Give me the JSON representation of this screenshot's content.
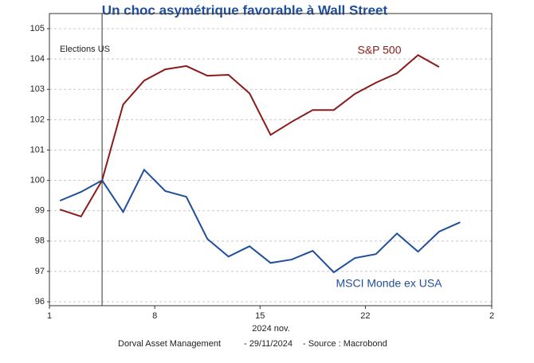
{
  "chart_data": {
    "type": "line",
    "title": "Un choc asymétrique favorable à Wall Street",
    "x_label": "2024 nov.",
    "footer": [
      "Dorval Asset Management",
      "- 29/11/2024",
      "-   Source : Macrobond"
    ],
    "annotation": {
      "x": 2,
      "label": "Elections US"
    },
    "x": [
      0,
      1,
      2,
      3,
      4,
      5,
      6,
      7,
      8,
      9,
      10,
      11,
      12,
      13,
      14,
      15,
      16,
      17,
      18,
      19
    ],
    "series": [
      {
        "name": "S&P 500",
        "color": "#8b1a1a",
        "values": [
          99.04,
          98.81,
          100,
          102.5,
          103.29,
          103.66,
          103.77,
          103.45,
          103.48,
          102.87,
          101.5,
          101.93,
          102.32,
          102.32,
          102.85,
          103.22,
          103.53,
          104.13,
          103.74,
          null
        ]
      },
      {
        "name": "MSCI Monde ex USA",
        "color": "#1f4e9c",
        "values": [
          99.33,
          99.62,
          100,
          98.96,
          100.35,
          99.65,
          99.46,
          98.07,
          97.49,
          97.83,
          97.28,
          97.39,
          97.68,
          96.97,
          97.44,
          97.57,
          98.25,
          97.65,
          98.31,
          98.62
        ]
      }
    ],
    "xlim": [
      -0.5,
      20.5
    ],
    "xticks": [
      {
        "value": -0.5,
        "label": "1"
      },
      {
        "value": 4.5,
        "label": "8"
      },
      {
        "value": 9.5,
        "label": "15"
      },
      {
        "value": 14.5,
        "label": "22"
      },
      {
        "value": 20.5,
        "label": "2"
      }
    ],
    "ylim": [
      95.87,
      105.5
    ],
    "yticks": [
      96,
      97,
      98,
      99,
      100,
      101,
      102,
      103,
      104,
      105
    ],
    "grid": true
  }
}
